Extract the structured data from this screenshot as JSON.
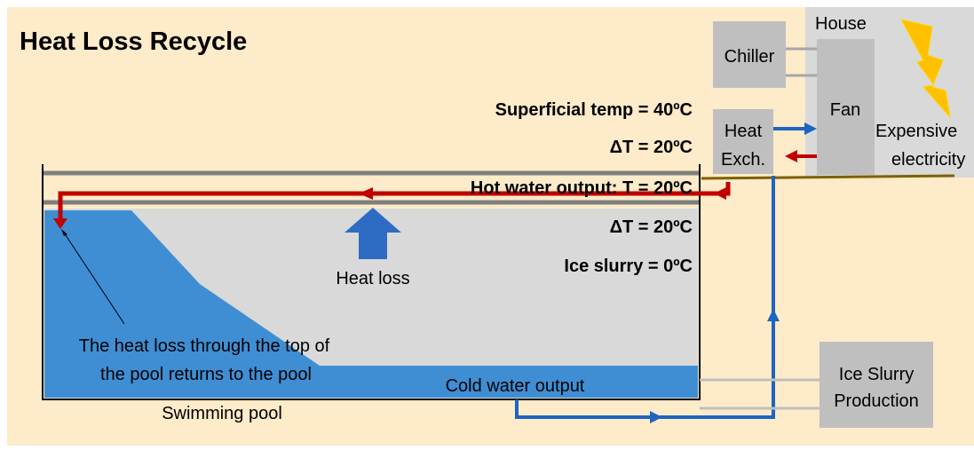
{
  "header": {
    "title": "Heat Loss Recycle"
  },
  "house": {
    "label": "House",
    "chiller": "Chiller",
    "fan": "Fan",
    "heat_exchanger": [
      "Heat",
      "Exch."
    ],
    "electricity": [
      "Expensive",
      "electricity"
    ]
  },
  "conditions": {
    "superficial_temp": "Superficial temp = 40ºC",
    "delta_top": "ΔT = 20ºC",
    "hot_water": "Hot water output: T = 20ºC",
    "delta_bottom": "ΔT = 20ºC",
    "ice_slurry": "Ice slurry = 0ºC"
  },
  "pool": {
    "heat_loss": "Heat loss",
    "note": [
      "The heat loss through the top of",
      "the pool returns to the pool"
    ],
    "cold_water": "Cold water output",
    "label": "Swimming pool"
  },
  "ice_slurry_production": [
    "Ice Slurry",
    "Production"
  ]
}
